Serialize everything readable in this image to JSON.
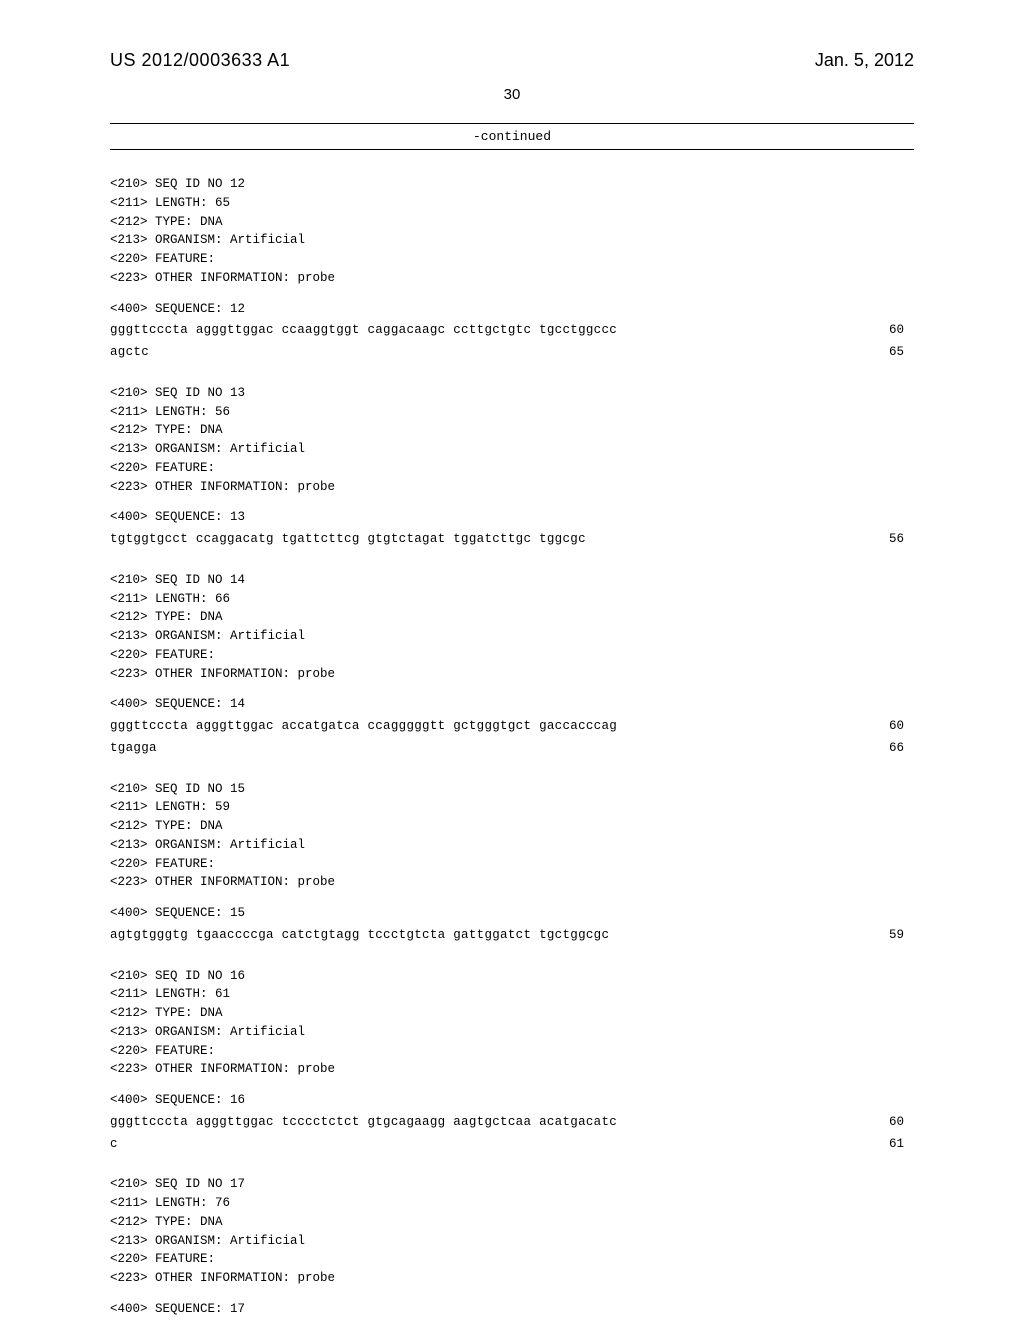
{
  "header": {
    "doc_id": "US 2012/0003633 A1",
    "date": "Jan. 5, 2012",
    "page_number": "30",
    "continued_label": "-continued"
  },
  "entries": [
    {
      "seq_id": "<210> SEQ ID NO 12",
      "length": "<211> LENGTH: 65",
      "type": "<212> TYPE: DNA",
      "organism": "<213> ORGANISM: Artificial",
      "feature": "<220> FEATURE:",
      "other_info": "<223> OTHER INFORMATION: probe",
      "seq_label": "<400> SEQUENCE: 12",
      "lines": [
        {
          "seq": "gggttcccta agggttggac ccaaggtggt caggacaagc ccttgctgtc tgcctggccc",
          "num": "60"
        },
        {
          "seq": "agctc",
          "num": "65"
        }
      ]
    },
    {
      "seq_id": "<210> SEQ ID NO 13",
      "length": "<211> LENGTH: 56",
      "type": "<212> TYPE: DNA",
      "organism": "<213> ORGANISM: Artificial",
      "feature": "<220> FEATURE:",
      "other_info": "<223> OTHER INFORMATION: probe",
      "seq_label": "<400> SEQUENCE: 13",
      "lines": [
        {
          "seq": "tgtggtgcct ccaggacatg tgattcttcg gtgtctagat tggatcttgc tggcgc",
          "num": "56"
        }
      ]
    },
    {
      "seq_id": "<210> SEQ ID NO 14",
      "length": "<211> LENGTH: 66",
      "type": "<212> TYPE: DNA",
      "organism": "<213> ORGANISM: Artificial",
      "feature": "<220> FEATURE:",
      "other_info": "<223> OTHER INFORMATION: probe",
      "seq_label": "<400> SEQUENCE: 14",
      "lines": [
        {
          "seq": "gggttcccta agggttggac accatgatca ccagggggtt gctgggtgct gaccacccag",
          "num": "60"
        },
        {
          "seq": "tgagga",
          "num": "66"
        }
      ]
    },
    {
      "seq_id": "<210> SEQ ID NO 15",
      "length": "<211> LENGTH: 59",
      "type": "<212> TYPE: DNA",
      "organism": "<213> ORGANISM: Artificial",
      "feature": "<220> FEATURE:",
      "other_info": "<223> OTHER INFORMATION: probe",
      "seq_label": "<400> SEQUENCE: 15",
      "lines": [
        {
          "seq": "agtgtgggtg tgaaccccga catctgtagg tccctgtcta gattggatct tgctggcgc",
          "num": "59"
        }
      ]
    },
    {
      "seq_id": "<210> SEQ ID NO 16",
      "length": "<211> LENGTH: 61",
      "type": "<212> TYPE: DNA",
      "organism": "<213> ORGANISM: Artificial",
      "feature": "<220> FEATURE:",
      "other_info": "<223> OTHER INFORMATION: probe",
      "seq_label": "<400> SEQUENCE: 16",
      "lines": [
        {
          "seq": "gggttcccta agggttggac tcccctctct gtgcagaagg aagtgctcaa acatgacatc",
          "num": "60"
        },
        {
          "seq": "c",
          "num": "61"
        }
      ]
    },
    {
      "seq_id": "<210> SEQ ID NO 17",
      "length": "<211> LENGTH: 76",
      "type": "<212> TYPE: DNA",
      "organism": "<213> ORGANISM: Artificial",
      "feature": "<220> FEATURE:",
      "other_info": "<223> OTHER INFORMATION: probe",
      "seq_label": "<400> SEQUENCE: 17",
      "lines": []
    }
  ]
}
